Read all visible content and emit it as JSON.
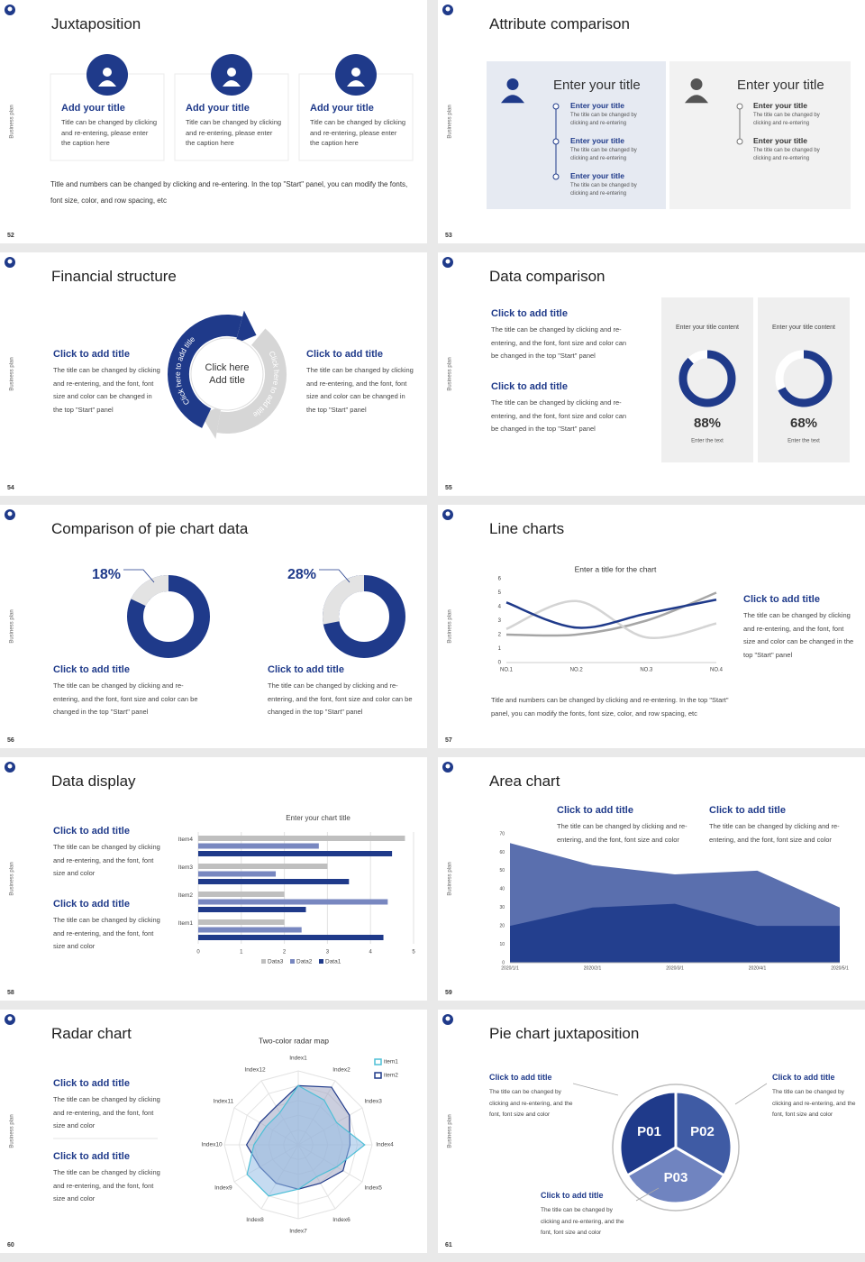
{
  "side_label": "Business plan",
  "slides": [
    {
      "number": 52,
      "title": "Juxtaposition",
      "cards": [
        {
          "title": "Add your title",
          "text": "Title can be changed by clicking and re-entering, please enter the caption here"
        },
        {
          "title": "Add your title",
          "text": "Title can be changed by clicking and re-entering, please enter the caption here"
        },
        {
          "title": "Add your title",
          "text": "Title can be changed by clicking and re-entering, please enter the caption here"
        }
      ],
      "note": "Title and numbers can be changed by clicking and re-entering. In the top \"Start\" panel, you can modify the fonts, font size, color, and row spacing, etc"
    },
    {
      "number": 53,
      "title": "Attribute comparison",
      "panels": [
        {
          "title": "Enter your title",
          "items": [
            {
              "title": "Enter your title",
              "text": "The title can be changed by clicking and re-entering"
            },
            {
              "title": "Enter your title",
              "text": "The title can be changed by clicking and re-entering"
            },
            {
              "title": "Enter your title",
              "text": "The title can be changed by clicking and re-entering"
            }
          ]
        },
        {
          "title": "Enter your title",
          "items": [
            {
              "title": "Enter your title",
              "text": "The title can be changed by clicking and re-entering"
            },
            {
              "title": "Enter your title",
              "text": "The title can be changed by clicking and re-entering"
            }
          ]
        }
      ]
    },
    {
      "number": 54,
      "title": "Financial structure",
      "left": {
        "title": "Click to add title",
        "text": "The title can be changed by clicking and re-entering, and the font, font size and color can be changed in the top \"Start\" panel"
      },
      "right": {
        "title": "Click to add title",
        "text": "The title can be changed by clicking and re-entering, and the font, font size and color can be changed in the top \"Start\" panel"
      },
      "center": [
        "Click here",
        "Add title"
      ],
      "arc_labels": [
        "Click here to add title",
        "Click here to add title"
      ]
    },
    {
      "number": 55,
      "title": "Data comparison",
      "items": [
        {
          "title": "Click to add title",
          "text": "The title can be changed by clicking and re-entering, and the font, font size and color can be changed in the top \"Start\" panel"
        },
        {
          "title": "Click to add title",
          "text": "The title can be changed by clicking and re-entering, and the font, font size and color can be changed in the top \"Start\" panel"
        }
      ],
      "cards": [
        {
          "heading": "Enter your title content",
          "value": 88,
          "value_label": "88%",
          "caption": "Enter the text"
        },
        {
          "heading": "Enter your title content",
          "value": 68,
          "value_label": "68%",
          "caption": "Enter the text"
        }
      ]
    },
    {
      "number": 56,
      "title": "Comparison of pie chart data",
      "pies": [
        {
          "value": 18,
          "value_label": "18%",
          "title": "Click to add title",
          "text": "The title can be changed by clicking and re-entering, and the font, font size and color can be changed in the top \"Start\" panel"
        },
        {
          "value": 28,
          "value_label": "28%",
          "title": "Click to add title",
          "text": "The title can be changed by clicking and re-entering, and the font, font size and color can be changed in the top \"Start\" panel"
        }
      ]
    },
    {
      "number": 57,
      "title": "Line charts",
      "chart": {
        "type": "line",
        "title": "Enter a title for the chart",
        "categories": [
          "NO.1",
          "NO.2",
          "NO.3",
          "NO.4"
        ],
        "series": [
          {
            "color": "#1f3a8a",
            "values": [
              4.3,
              2.5,
              3.5,
              4.5
            ]
          },
          {
            "color": "#d4d4d4",
            "values": [
              2.4,
              4.4,
              1.8,
              2.8
            ]
          },
          {
            "color": "#a6a6a6",
            "values": [
              2.0,
              2.0,
              3.0,
              5.0
            ]
          }
        ],
        "ylim": [
          0,
          6
        ],
        "yticks": [
          0,
          1,
          2,
          3,
          4,
          5,
          6
        ],
        "grid": false
      },
      "text_block": {
        "title": "Click to add title",
        "text": "The title can be changed by clicking and re-entering, and the font, font size and color can be changed in the top \"Start\" panel"
      },
      "note": "Title and numbers can be changed by clicking and re-entering. In the top \"Start\" panel, you can modify the fonts, font size, color, and row spacing, etc"
    },
    {
      "number": 58,
      "title": "Data display",
      "items": [
        {
          "title": "Click to add title",
          "text": "The title can be changed by clicking and re-entering, and the font, font size and color"
        },
        {
          "title": "Click to add title",
          "text": "The title can be changed by clicking and re-entering, and the font, font size and color"
        }
      ],
      "chart": {
        "type": "hbar",
        "title": "Enter your chart title",
        "categories": [
          "Item1",
          "Item2",
          "Item3",
          "Item4"
        ],
        "series": [
          {
            "name": "Data3",
            "color": "#bfbfbf",
            "values": [
              2.0,
              2.0,
              3.0,
              4.8
            ]
          },
          {
            "name": "Data2",
            "color": "#7887c0",
            "values": [
              2.4,
              4.4,
              1.8,
              2.8
            ]
          },
          {
            "name": "Data1",
            "color": "#1f3a8a",
            "values": [
              4.3,
              2.5,
              3.5,
              4.5
            ]
          }
        ],
        "xlim": [
          0,
          5
        ],
        "xticks": [
          0,
          1,
          2,
          3,
          4,
          5
        ],
        "grid": true,
        "legend": "bottom"
      }
    },
    {
      "number": 59,
      "title": "Area chart",
      "items": [
        {
          "title": "Click to add title",
          "text": "The title can be changed by clicking and re-entering, and the font, font size and color"
        },
        {
          "title": "Click to add title",
          "text": "The title can be changed by clicking and re-entering, and the font, font size and color"
        }
      ],
      "chart": {
        "type": "area",
        "categories": [
          "2020/1/1",
          "2020/2/1",
          "2020/3/1",
          "2020/4/1",
          "2020/5/1"
        ],
        "series": [
          {
            "color": "#5a6fae",
            "values": [
              65,
              53,
              48,
              50,
              30
            ]
          },
          {
            "color": "#233f8e",
            "values": [
              20,
              30,
              32,
              20,
              20
            ]
          }
        ],
        "ylim": [
          0,
          70
        ],
        "yticks": [
          0,
          10,
          20,
          30,
          40,
          50,
          60,
          70
        ],
        "grid": false
      }
    },
    {
      "number": 60,
      "title": "Radar chart",
      "items": [
        {
          "title": "Click to add title",
          "text": "The title can be changed by clicking and re-entering, and the font, font size and color"
        },
        {
          "title": "Click to add title",
          "text": "The title can be changed by clicking and re-entering, and the font, font size and color"
        }
      ],
      "chart": {
        "type": "radar",
        "title": "Two-color radar map",
        "categories": [
          "Index1",
          "Index2",
          "Index3",
          "Index4",
          "Index5",
          "Index6",
          "Index7",
          "Index8",
          "Index9",
          "Index10",
          "Index11",
          "Index12"
        ],
        "series": [
          {
            "name": "item1",
            "color": "#4dbfd6",
            "values": [
              8,
              7,
              6,
              9,
              6,
              5,
              6,
              8,
              8,
              6,
              5,
              5
            ]
          },
          {
            "name": "item2",
            "color": "#1f3a8a",
            "values": [
              8,
              9,
              8,
              7,
              7,
              6,
              6,
              6,
              6,
              7,
              6,
              6
            ]
          }
        ],
        "rlim": [
          0,
          10
        ],
        "legend": "top-right"
      }
    },
    {
      "number": 61,
      "title": "Pie chart juxtaposition",
      "blocks": [
        {
          "title": "Click to add title",
          "text": "The title can be changed by clicking and re-entering, and the font, font size and color"
        },
        {
          "title": "Click to add title",
          "text": "The title can be changed by clicking and re-entering, and the font, font size and color"
        },
        {
          "title": "Click to add title",
          "text": "The title can be changed by clicking and re-entering, and the font, font size and color"
        }
      ],
      "chart": {
        "type": "pie",
        "categories": [
          "P01",
          "P02",
          "P03"
        ],
        "values": [
          33.3,
          33.3,
          33.3
        ],
        "colors": [
          "#1f3a8a",
          "#3f5ba4",
          "#7084c0"
        ]
      }
    }
  ]
}
